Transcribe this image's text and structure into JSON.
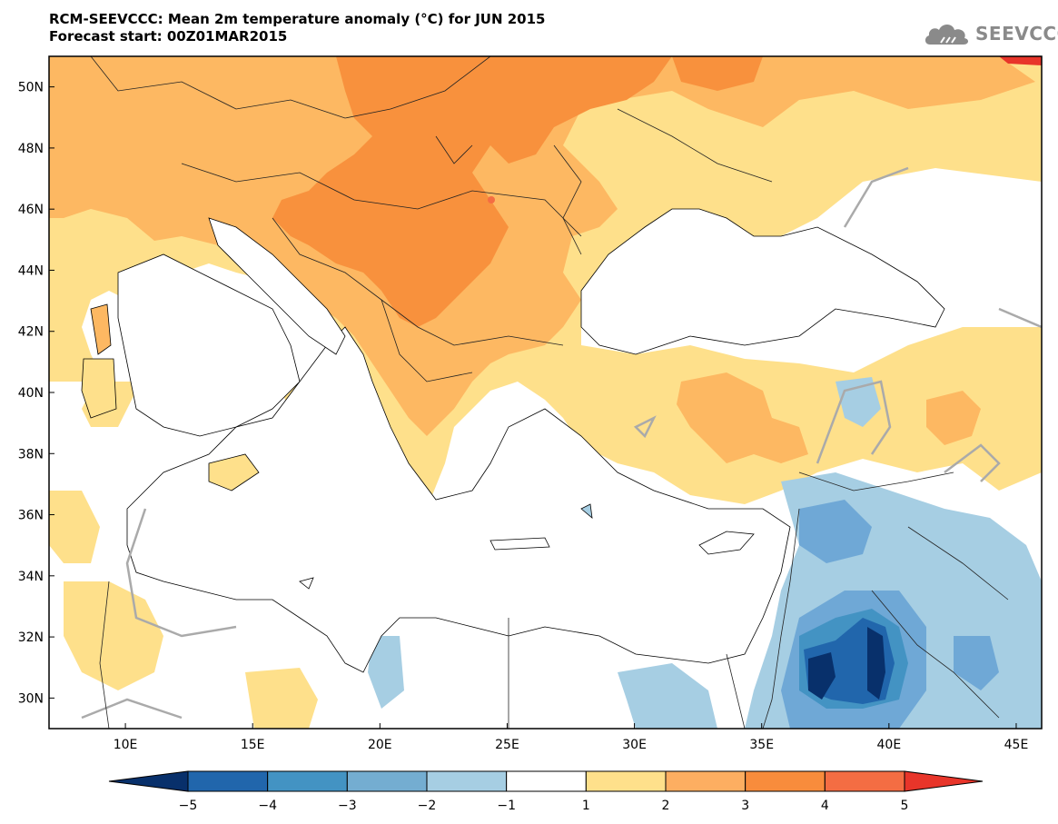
{
  "header": {
    "title_line1": "RCM-SEEVCCC: Mean 2m temperature anomaly (°C) for JUN 2015",
    "title_line2": "Forecast start: 00Z01MAR2015"
  },
  "logo": {
    "text": "SEEVCCC",
    "icon": "cloud-logo-icon"
  },
  "map": {
    "lat_ticks": [
      "50N",
      "48N",
      "46N",
      "44N",
      "42N",
      "40N",
      "38N",
      "36N",
      "34N",
      "32N",
      "30N"
    ],
    "lon_ticks": [
      "10E",
      "15E",
      "20E",
      "25E",
      "30E",
      "35E",
      "40E",
      "45E"
    ],
    "lat_range": [
      29,
      51
    ],
    "lon_range": [
      7,
      46
    ]
  },
  "colorbar": {
    "labels": [
      "−5",
      "−4",
      "−3",
      "−2",
      "−1",
      "1",
      "2",
      "3",
      "4",
      "5"
    ],
    "colors": [
      "#08306b",
      "#2166ac",
      "#4393c3",
      "#74add1",
      "#a6cee3",
      "#ffffff",
      "#fee08b",
      "#fdae61",
      "#f88c3c",
      "#f46d43",
      "#e8352a"
    ]
  },
  "colors": {
    "anomaly_1_2": "#fee08b",
    "anomaly_2_3": "#fdb862",
    "anomaly_3_4": "#f8913d",
    "anomaly_4_5": "#f46d43",
    "anomaly_m1_m2": "#a6cee3",
    "anomaly_m2_m3": "#6fa8d6",
    "anomaly_m3_m4": "#4393c3",
    "anomaly_m4_m5": "#2166ac",
    "anomaly_below_m5": "#08306b",
    "zero_contour": "#aaaaaa"
  }
}
